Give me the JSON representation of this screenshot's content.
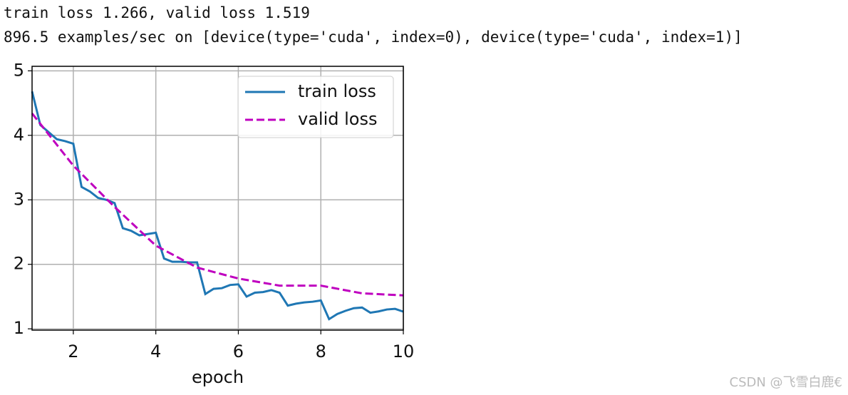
{
  "header": {
    "line1": "train loss 1.266, valid loss 1.519",
    "line2": "896.5 examples/sec on [device(type='cuda', index=0), device(type='cuda', index=1)]"
  },
  "chart_data": {
    "type": "line",
    "xlabel": "epoch",
    "xlim": [
      1,
      10
    ],
    "xticks": [
      2,
      4,
      6,
      8,
      10
    ],
    "ylim": [
      0.98,
      5.07
    ],
    "yticks": [
      1,
      2,
      3,
      4,
      5
    ],
    "grid": true,
    "legend": "upper right",
    "series": [
      {
        "name": "train loss",
        "color": "#1f77b4",
        "dash": "solid",
        "x": [
          1,
          1.2,
          1.4,
          1.6,
          1.8,
          2,
          2.2,
          2.4,
          2.6,
          2.8,
          3,
          3.2,
          3.4,
          3.6,
          3.8,
          4,
          4.2,
          4.4,
          4.6,
          4.8,
          5,
          5.2,
          5.4,
          5.6,
          5.8,
          6,
          6.2,
          6.4,
          6.6,
          6.8,
          7,
          7.2,
          7.4,
          7.6,
          7.8,
          8,
          8.2,
          8.4,
          8.6,
          8.8,
          9,
          9.2,
          9.4,
          9.6,
          9.8,
          10
        ],
        "values": [
          4.68,
          4.16,
          4.05,
          3.94,
          3.91,
          3.87,
          3.2,
          3.13,
          3.03,
          3.0,
          2.95,
          2.56,
          2.52,
          2.45,
          2.47,
          2.49,
          2.09,
          2.04,
          2.04,
          2.03,
          2.03,
          1.54,
          1.62,
          1.63,
          1.68,
          1.69,
          1.5,
          1.56,
          1.57,
          1.6,
          1.56,
          1.36,
          1.39,
          1.41,
          1.42,
          1.44,
          1.15,
          1.23,
          1.28,
          1.32,
          1.33,
          1.25,
          1.27,
          1.3,
          1.31,
          1.266
        ]
      },
      {
        "name": "valid loss",
        "color": "#bf00bf",
        "dash": "dashed",
        "x": [
          1,
          2,
          3,
          4,
          5,
          6,
          7,
          8,
          9,
          10
        ],
        "values": [
          4.34,
          3.53,
          2.89,
          2.29,
          1.95,
          1.78,
          1.67,
          1.67,
          1.55,
          1.519
        ]
      }
    ]
  },
  "watermark": "CSDN @飞雪白鹿€"
}
